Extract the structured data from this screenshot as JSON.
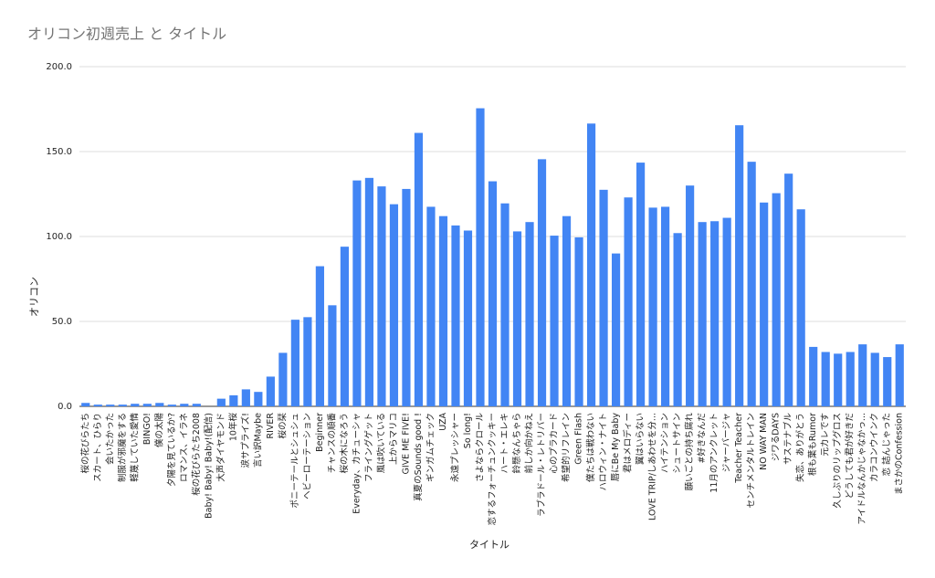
{
  "chart_data": {
    "type": "bar",
    "title": "オリコン初週売上 と タイトル",
    "x_label": "タイトル",
    "y_label": "オリコン",
    "categories": [
      "桜の花びらたち",
      "スカート、ひらり",
      "会いたかった",
      "制服が邪魔をする",
      "軽蔑していた愛情",
      "BINGO!",
      "僕の太陽",
      "夕陽を見ているか?",
      "ロマンス、イラネ",
      "桜の花びらたち2008",
      "Baby! Baby! Baby!(配信)",
      "大声ダイヤモンド",
      "10年桜",
      "涙サプライズ!",
      "言い訳Maybe",
      "RIVER",
      "桜の栞",
      "ポニーテールとシュシュ",
      "ヘビーローテーション",
      "Beginner",
      "チャンスの順番",
      "桜の木になろう",
      "Everyday、カチューシャ",
      "フライングゲット",
      "風は吹いている",
      "上からマリコ",
      "GIVE ME FIVE!",
      "真夏のSounds good !",
      "ギンガムチェック",
      "UZA",
      "永遠プレッシャー",
      "So long!",
      "さよならクロール",
      "恋するフォーチュンクッキー",
      "ハート・エレキ",
      "鈴懸なんちゃら",
      "前しか向かねえ",
      "ラブラドール・レトリバー",
      "心のプラカード",
      "希望的リフレイン",
      "Green Flash",
      "僕たちは戦わない",
      "ハロウィン・ナイト",
      "唇にBe My Baby",
      "君はメロディー",
      "翼はいらない",
      "LOVE TRIP/しあわせを分...",
      "ハイテンション",
      "シュートサイン",
      "願いごとの持ち腐れ",
      "#好きなんだ",
      "11月のアンクレット",
      "ジャーバージャ",
      "Teacher Teacher",
      "センチメンタルトレイン",
      "NO WAY MAN",
      "ジワるDAYS",
      "サステナブル",
      "失恋、ありがとう",
      "根も葉もRumor",
      "元カレです",
      "久しぶりのリップグロス",
      "どうしても君が好きだ",
      "アイドルなんかじゃなかっ...",
      "カラコンウインク",
      "恋 詰んじゃった",
      "まさかのConfession"
    ],
    "values": [
      2,
      1,
      1,
      1,
      1.5,
      1.5,
      2,
      1,
      1.5,
      1.5,
      0,
      4.5,
      6.5,
      10,
      8.5,
      17.5,
      31.5,
      51,
      52.5,
      82.5,
      59.5,
      94,
      133,
      134.5,
      129.5,
      119,
      128,
      161,
      117.5,
      112,
      106.5,
      103.5,
      175.5,
      132.5,
      119.5,
      103,
      108.5,
      145.5,
      100.5,
      112,
      99.5,
      166.5,
      127.5,
      90,
      123,
      143.5,
      117,
      117.5,
      102,
      130,
      108.5,
      109,
      111,
      165.5,
      144,
      120,
      125.5,
      137,
      116,
      35,
      32,
      31,
      32,
      36.5,
      31.5,
      29,
      36.5
    ],
    "color": "#4285f4",
    "ylim": [
      0,
      200
    ],
    "yticks": [
      {
        "value": 0,
        "label": "0.0"
      },
      {
        "value": 50,
        "label": "50.0"
      },
      {
        "value": 100,
        "label": "100.0"
      },
      {
        "value": 150,
        "label": "150.0"
      },
      {
        "value": 200,
        "label": "200.0"
      }
    ],
    "grid": true
  }
}
